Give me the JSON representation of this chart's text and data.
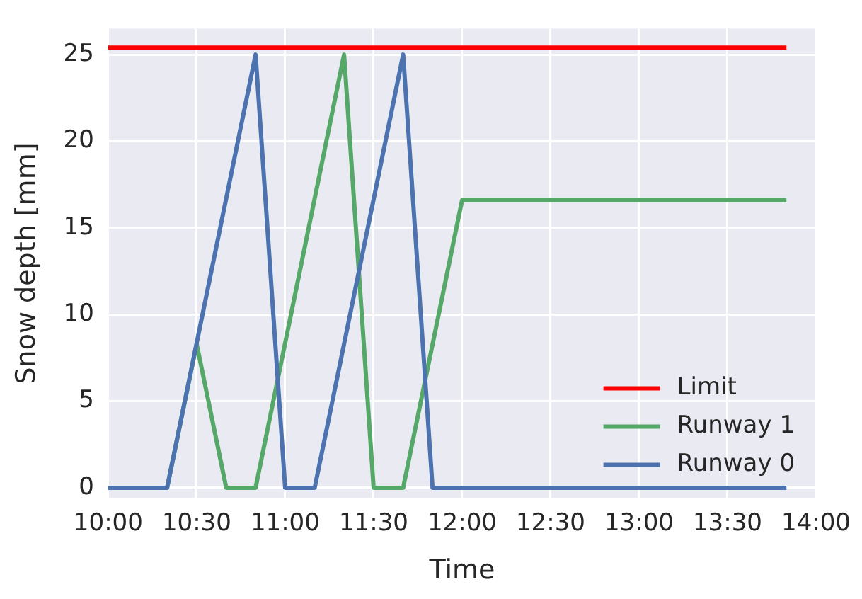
{
  "chart_data": {
    "type": "line",
    "xlabel": "Time",
    "ylabel": "Snow depth [mm]",
    "xlim": [
      10,
      14
    ],
    "ylim": [
      -0.6,
      26.5
    ],
    "xticks": [
      {
        "value": 10,
        "label": "10:00"
      },
      {
        "value": 10.5,
        "label": "10:30"
      },
      {
        "value": 11,
        "label": "11:00"
      },
      {
        "value": 11.5,
        "label": "11:30"
      },
      {
        "value": 12,
        "label": "12:00"
      },
      {
        "value": 12.5,
        "label": "12:30"
      },
      {
        "value": 13,
        "label": "13:00"
      },
      {
        "value": 13.5,
        "label": "13:30"
      },
      {
        "value": 14,
        "label": "14:00"
      }
    ],
    "yticks": [
      0,
      5,
      10,
      15,
      20,
      25
    ],
    "grid": true,
    "legend": "bottom right",
    "line_style": "solid",
    "marker": "none",
    "series": [
      {
        "name": "Limit",
        "color": "#ff0000",
        "x": [
          10,
          13.833
        ],
        "values": [
          25.4,
          25.4
        ]
      },
      {
        "name": "Runway 1",
        "color": "#55a868",
        "x": [
          10,
          10.333,
          10.5,
          10.667,
          10.833,
          11.333,
          11.5,
          11.667,
          12,
          13.833
        ],
        "values": [
          0,
          0,
          8.3,
          0,
          0,
          25,
          0,
          0,
          16.6,
          16.6
        ]
      },
      {
        "name": "Runway 0",
        "color": "#4c72b0",
        "x": [
          10,
          10.333,
          10.833,
          11,
          11.167,
          11.667,
          11.833,
          13.833
        ],
        "values": [
          0,
          0,
          25,
          0,
          0,
          25,
          0,
          0
        ]
      }
    ]
  }
}
